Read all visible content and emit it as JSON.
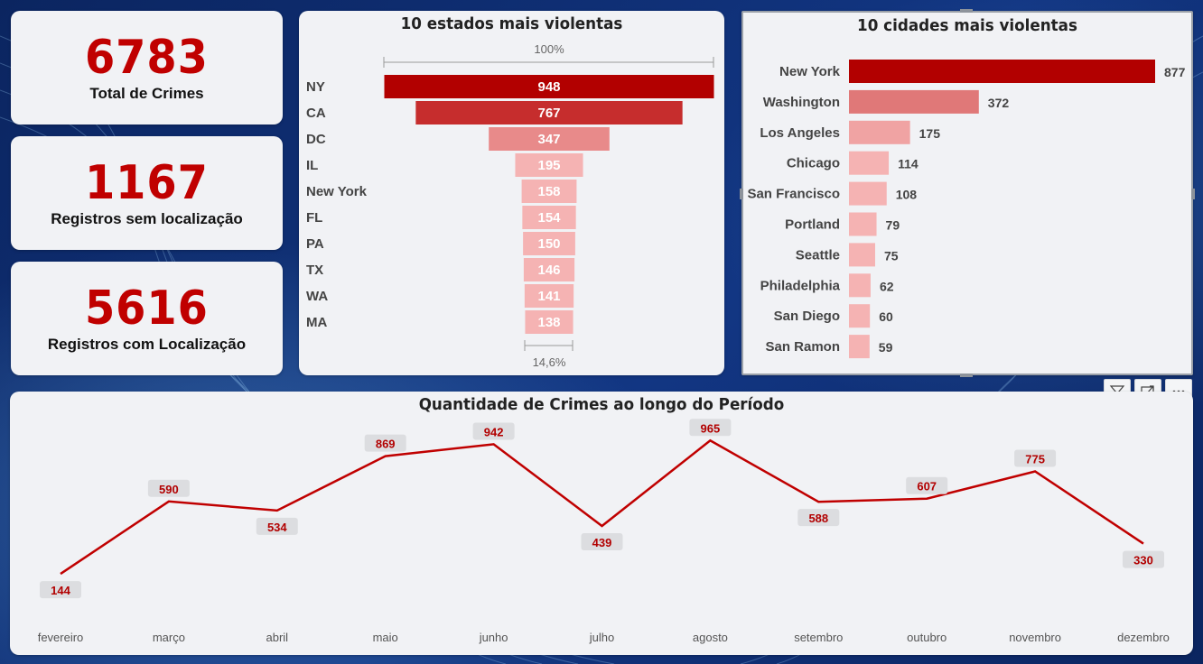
{
  "kpis": [
    {
      "value": "6783",
      "label": "Total de Crimes"
    },
    {
      "value": "1167",
      "label": "Registros sem localização"
    },
    {
      "value": "5616",
      "label": "Registros com Localização"
    }
  ],
  "funnel": {
    "title": "10 estados mais violentas",
    "top_pct_label": "100%",
    "bottom_pct_label": "14,6%"
  },
  "cities": {
    "title": "10 cidades mais violentas"
  },
  "line": {
    "title": "Quantidade de Crimes ao longo do Período"
  },
  "toolbar": {
    "icons": [
      "filter-icon",
      "focus-mode-icon",
      "more-options-icon"
    ]
  },
  "colors": {
    "dark_red": "#b20000",
    "line_red": "#c00000",
    "card_bg": "#f1f2f5",
    "page_bg": "#0d2a6b"
  },
  "chart_data": [
    {
      "type": "bar",
      "variant": "funnel",
      "title": "10 estados mais violentas",
      "categories": [
        "NY",
        "CA",
        "DC",
        "IL",
        "New York",
        "FL",
        "PA",
        "TX",
        "WA",
        "MA"
      ],
      "values": [
        948,
        767,
        347,
        195,
        158,
        154,
        150,
        146,
        141,
        138
      ],
      "colors": [
        "#b20000",
        "#c62d2d",
        "#e88a8a",
        "#f5b3b3",
        "#f5b3b3",
        "#f5b3b3",
        "#f5b3b3",
        "#f5b3b3",
        "#f5b3b3",
        "#f5b3b3"
      ]
    },
    {
      "type": "bar",
      "orientation": "horizontal",
      "title": "10 cidades mais violentas",
      "categories": [
        "New York",
        "Washington",
        "Los Angeles",
        "Chicago",
        "San Francisco",
        "Portland",
        "Seattle",
        "Philadelphia",
        "San Diego",
        "San Ramon"
      ],
      "values": [
        877,
        372,
        175,
        114,
        108,
        79,
        75,
        62,
        60,
        59
      ],
      "colors": [
        "#b20000",
        "#e07878",
        "#f0a3a3",
        "#f5b3b3",
        "#f5b3b3",
        "#f5b3b3",
        "#f5b3b3",
        "#f5b3b3",
        "#f5b3b3",
        "#f5b3b3"
      ]
    },
    {
      "type": "line",
      "title": "Quantidade de Crimes ao longo do Período",
      "x": [
        "fevereiro",
        "março",
        "abril",
        "maio",
        "junho",
        "julho",
        "agosto",
        "setembro",
        "outubro",
        "novembro",
        "dezembro"
      ],
      "values": [
        144,
        590,
        534,
        869,
        942,
        439,
        965,
        588,
        607,
        775,
        330
      ],
      "ylim": [
        0,
        1000
      ],
      "grid": false
    }
  ]
}
